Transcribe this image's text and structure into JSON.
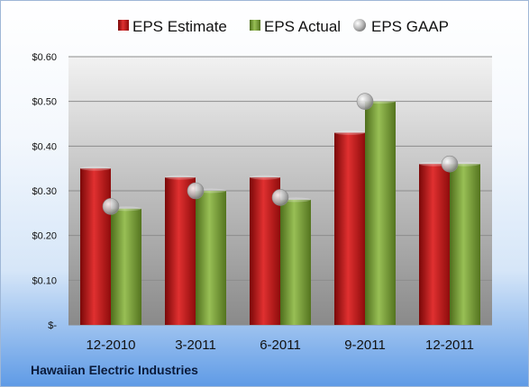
{
  "company_name": "Hawaiian Electric Industries",
  "colors": {
    "estimate": "#c41a1a",
    "actual": "#7a9e35",
    "gaap": "#a8a8a8",
    "plot_top": "#f2f2f2",
    "plot_bottom": "#8a8a8a"
  },
  "chart_data": {
    "type": "bar",
    "categories": [
      "12-2010",
      "3-2011",
      "6-2011",
      "9-2011",
      "12-2011"
    ],
    "series": [
      {
        "name": "EPS Estimate",
        "kind": "bar",
        "values": [
          0.35,
          0.33,
          0.33,
          0.43,
          0.36
        ]
      },
      {
        "name": "EPS Actual",
        "kind": "bar",
        "values": [
          0.26,
          0.3,
          0.28,
          0.5,
          0.36
        ]
      },
      {
        "name": "EPS GAAP",
        "kind": "marker",
        "values": [
          0.265,
          0.3,
          0.285,
          0.5,
          0.36
        ]
      }
    ],
    "yticks": [
      "$-",
      "$0.10",
      "$0.20",
      "$0.30",
      "$0.40",
      "$0.50",
      "$0.60"
    ],
    "ylim": [
      0,
      0.6
    ],
    "grid": true,
    "legend_position": "top"
  }
}
